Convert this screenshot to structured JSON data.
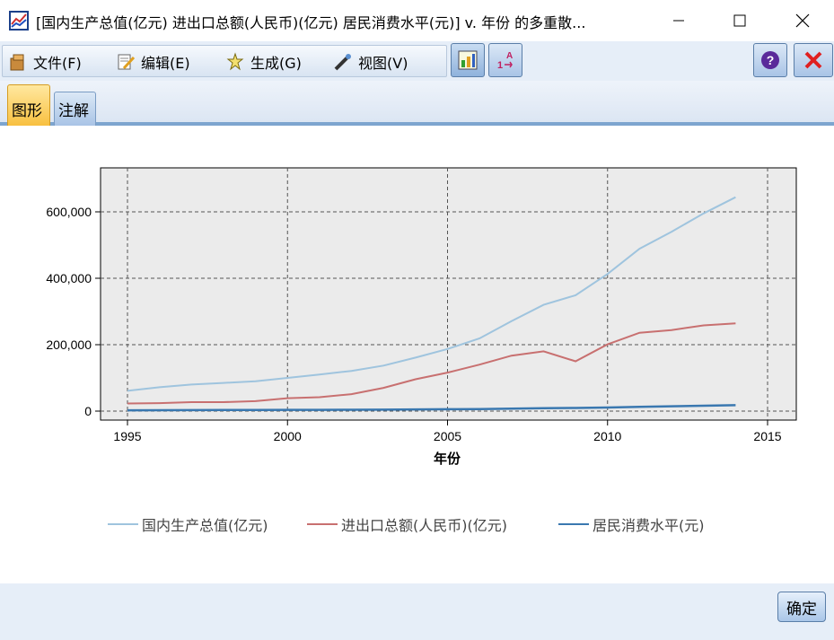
{
  "window": {
    "title": "[国内生产总值(亿元) 进出口总额(人民币)(亿元) 居民消费水平(元)] v. 年份 的多重散..."
  },
  "menu": {
    "file": "文件(F)",
    "edit": "编辑(E)",
    "generate": "生成(G)",
    "view": "视图(V)"
  },
  "tabs": {
    "graph": "图形",
    "annotation": "注解"
  },
  "buttons": {
    "ok": "确定"
  },
  "icons": [
    "app-chart-icon",
    "file-icon",
    "edit-icon",
    "generate-icon",
    "view-icon",
    "graph-board-icon",
    "sort-icon",
    "help-icon",
    "close-red-icon"
  ],
  "colors": {
    "gdp": "#9fc4de",
    "trade": "#c87070",
    "consumption": "#3a78b0",
    "plot_bg": "#ebebeb",
    "tab_active": "#f8c040"
  },
  "chart_data": {
    "type": "line",
    "title": "",
    "xlabel": "年份",
    "ylabel": "",
    "x": [
      1995,
      1996,
      1997,
      1998,
      1999,
      2000,
      2001,
      2002,
      2003,
      2004,
      2005,
      2006,
      2007,
      2008,
      2009,
      2010,
      2011,
      2012,
      2013,
      2014
    ],
    "xlim": [
      1995,
      2015
    ],
    "ylim": [
      -20000,
      725000
    ],
    "xticks": [
      "1995",
      "2000",
      "2005",
      "2010",
      "2015"
    ],
    "xtick_values": [
      1995,
      2000,
      2005,
      2010,
      2015
    ],
    "yticks": [
      "0",
      "200,000",
      "400,000",
      "600,000"
    ],
    "ytick_values": [
      0,
      200000,
      400000,
      600000
    ],
    "grid": true,
    "legend_position": "bottom",
    "series": [
      {
        "name": "国内生产总值(亿元)",
        "values": [
          61000,
          72000,
          80000,
          85000,
          90000,
          100000,
          110000,
          121000,
          137000,
          161000,
          187000,
          219000,
          271000,
          320000,
          349000,
          413000,
          489000,
          540000,
          595000,
          644000
        ]
      },
      {
        "name": "进出口总额(人民币)(亿元)",
        "values": [
          23000,
          24000,
          27000,
          27000,
          30000,
          39000,
          42000,
          51000,
          70000,
          96000,
          116000,
          140000,
          167000,
          180000,
          150000,
          201000,
          236000,
          244000,
          258000,
          264000
        ]
      },
      {
        "name": "居民消费水平(元)",
        "values": [
          2300,
          2800,
          3000,
          3200,
          3300,
          3700,
          3900,
          4100,
          4400,
          5000,
          5600,
          6300,
          7500,
          8700,
          9500,
          10900,
          13100,
          14700,
          16200,
          17800
        ]
      }
    ]
  }
}
